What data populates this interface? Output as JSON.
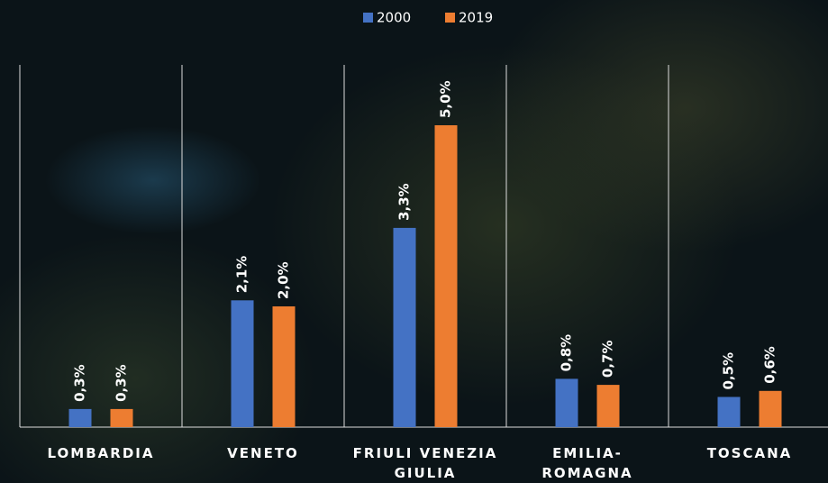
{
  "chart_data": {
    "type": "bar",
    "categories": [
      "LOMBARDIA",
      "VENETO",
      "FRIULI VENEZIA\nGIULIA",
      "EMILIA-\nROMAGNA",
      "TOSCANA"
    ],
    "series": [
      {
        "name": "2000",
        "color": "#4472c4",
        "values": [
          0.3,
          2.1,
          3.3,
          0.8,
          0.5
        ],
        "value_labels": [
          "0,3%",
          "2,1%",
          "3,3%",
          "0,8%",
          "0,5%"
        ]
      },
      {
        "name": "2019",
        "color": "#ed7d31",
        "values": [
          0.3,
          2.0,
          5.0,
          0.7,
          0.6
        ],
        "value_labels": [
          "0,3%",
          "2,0%",
          "5,0%",
          "0,7%",
          "0,6%"
        ]
      }
    ],
    "ylim": [
      0,
      6
    ],
    "legend": "top"
  }
}
